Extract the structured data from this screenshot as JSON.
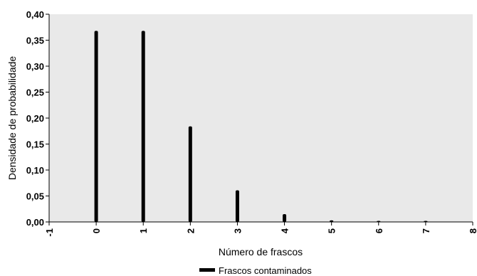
{
  "chart_data": {
    "type": "bar",
    "title": "",
    "xlabel": "Número de frascos",
    "ylabel": "Densidade de probabilidade",
    "xlim": [
      -1,
      8
    ],
    "ylim": [
      0,
      0.4
    ],
    "x_ticks": [
      "-1",
      "0",
      "1",
      "2",
      "3",
      "4",
      "5",
      "6",
      "7",
      "8"
    ],
    "y_ticks": [
      "0,00",
      "0,05",
      "0,10",
      "0,15",
      "0,20",
      "0,25",
      "0,30",
      "0,35",
      "0,40"
    ],
    "grid": false,
    "plot_background": "#e9e9e9",
    "legend_position": "bottom",
    "series": [
      {
        "name": "Frascos contaminados",
        "color": "#000000",
        "x": [
          0,
          1,
          2,
          3,
          4,
          5,
          6,
          7
        ],
        "values": [
          0.368,
          0.368,
          0.184,
          0.061,
          0.015,
          0.003,
          0.001,
          0.0001
        ]
      }
    ]
  }
}
